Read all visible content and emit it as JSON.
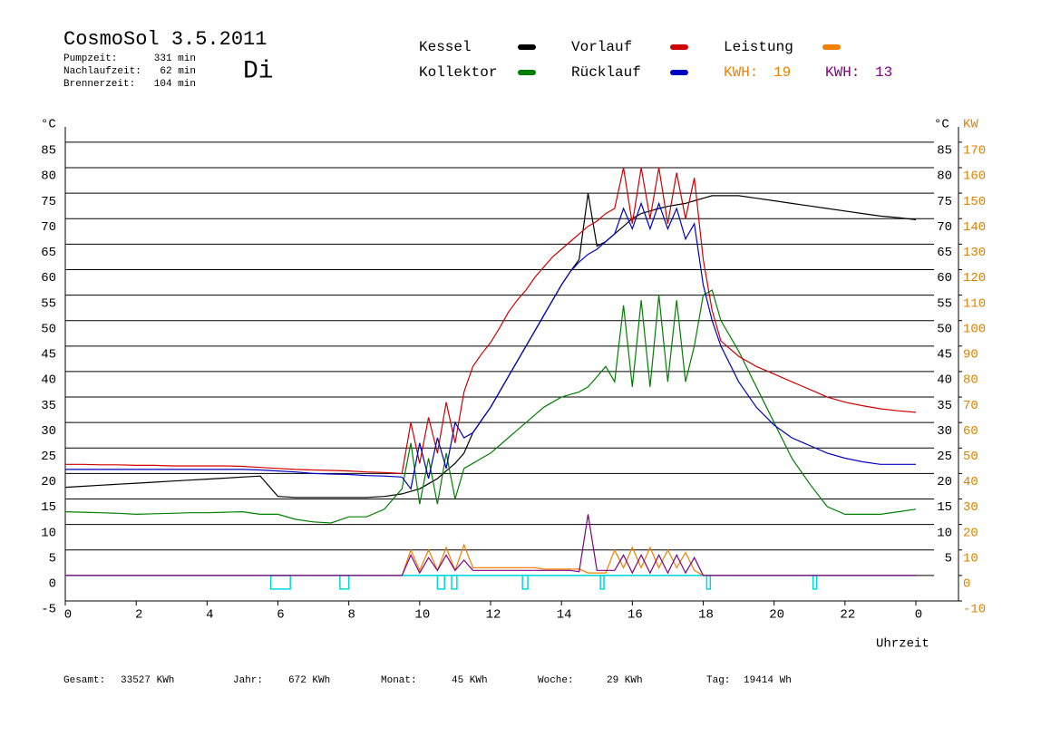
{
  "chart_data": {
    "type": "line",
    "title": "CosmoSol 3.5.2011",
    "subtitle": "Di",
    "stats": [
      {
        "label": "Pumpzeit:",
        "value": "331 min"
      },
      {
        "label": "Nachlaufzeit:",
        "value": "62 min"
      },
      {
        "label": "Brennerzeit:",
        "value": "104 min"
      }
    ],
    "totals": [
      {
        "label": "Gesamt:",
        "value": "33527 KWh"
      },
      {
        "label": "Jahr:",
        "value": "672 KWh"
      },
      {
        "label": "Monat:",
        "value": "45 KWh"
      },
      {
        "label": "Woche:",
        "value": "29 KWh"
      },
      {
        "label": "Tag:",
        "value": "19414 Wh"
      }
    ],
    "x_label": "Uhrzeit",
    "y_label": "°C",
    "right_y_label": "°C",
    "y2_label": "KW",
    "x": [
      0,
      0.5,
      1,
      1.5,
      2,
      2.5,
      3,
      3.5,
      4,
      4.5,
      5,
      5.5,
      6,
      6.5,
      7,
      7.5,
      8,
      8.5,
      9,
      9.5,
      9.75,
      10,
      10.25,
      10.5,
      10.75,
      11,
      11.25,
      11.5,
      11.75,
      12,
      12.25,
      12.5,
      12.75,
      13,
      13.25,
      13.5,
      13.75,
      14,
      14.25,
      14.5,
      14.75,
      15,
      15.25,
      15.5,
      15.75,
      16,
      16.25,
      16.5,
      16.75,
      17,
      17.25,
      17.5,
      17.75,
      18,
      18.25,
      18.5,
      19,
      19.5,
      20,
      20.5,
      21,
      21.5,
      22,
      22.5,
      23,
      23.5,
      24
    ],
    "xlim": [
      0,
      24
    ],
    "xticks": [
      0,
      2,
      4,
      6,
      8,
      10,
      12,
      14,
      16,
      18,
      20,
      22,
      {
        "value": 24,
        "label": "0"
      }
    ],
    "ylim": [
      -5,
      88
    ],
    "yticks": [
      -5,
      0,
      5,
      10,
      15,
      20,
      25,
      30,
      35,
      40,
      45,
      50,
      55,
      60,
      65,
      70,
      75,
      80,
      85
    ],
    "y2lim": [
      -10,
      176
    ],
    "y2ticks": [
      -10,
      0,
      10,
      20,
      30,
      40,
      50,
      60,
      70,
      80,
      90,
      100,
      110,
      120,
      130,
      140,
      150,
      160,
      170
    ],
    "grid": true,
    "series": [
      {
        "name": "Kessel",
        "color": "#000000",
        "values": [
          17.3,
          17.5,
          17.7,
          17.9,
          18.1,
          18.3,
          18.5,
          18.7,
          18.9,
          19.1,
          19.3,
          19.5,
          15.5,
          15.3,
          15.3,
          15.3,
          15.3,
          15.3,
          15.5,
          16,
          16.5,
          17,
          18,
          19,
          20.5,
          22,
          24,
          28,
          30.5,
          33,
          36,
          39,
          42,
          45,
          48,
          51,
          54,
          57,
          59.6,
          62,
          75,
          64.6,
          65.5,
          67,
          68.5,
          70,
          71,
          71.5,
          72,
          72.4,
          72.7,
          73,
          73.5,
          74,
          74.5,
          74.5,
          74.5,
          74,
          73.5,
          73,
          72.5,
          72,
          71.5,
          71,
          70.5,
          70.2,
          69.8
        ]
      },
      {
        "name": "Kollektor",
        "color": "#008000",
        "values": [
          12.5,
          12.4,
          12.3,
          12.2,
          12,
          12.1,
          12.2,
          12.3,
          12.3,
          12.4,
          12.5,
          12,
          12,
          11,
          10.5,
          10.3,
          11.5,
          11.5,
          13,
          17,
          26,
          14,
          23,
          14,
          24,
          15,
          21,
          22,
          23,
          24,
          25.5,
          27,
          28.5,
          30,
          31.5,
          33,
          34,
          35,
          35.5,
          36,
          37,
          39,
          41,
          38,
          53,
          37,
          54,
          37,
          55,
          38,
          54,
          38,
          45,
          55,
          56,
          50,
          44,
          37,
          30,
          23,
          18,
          13.5,
          12,
          12,
          12,
          12.5,
          13
        ]
      },
      {
        "name": "Vorlauf",
        "color": "#d00000",
        "values": [
          21.8,
          21.8,
          21.7,
          21.7,
          21.6,
          21.6,
          21.5,
          21.5,
          21.5,
          21.5,
          21.4,
          21.2,
          21,
          20.8,
          20.7,
          20.6,
          20.5,
          20.3,
          20.2,
          20,
          30,
          22,
          31,
          24,
          34,
          26,
          36,
          41,
          43.5,
          45.7,
          48.5,
          51.6,
          54,
          56,
          58.5,
          60.5,
          62.5,
          64,
          65.5,
          67,
          68.5,
          69.5,
          71,
          72,
          80,
          69,
          80,
          70,
          80,
          69,
          79,
          70,
          78,
          62,
          52,
          46,
          43,
          41,
          39.5,
          38,
          36.5,
          35,
          34,
          33.3,
          32.7,
          32.3,
          32
        ]
      },
      {
        "name": "Rücklauf",
        "color": "#0000c0",
        "values": [
          20.8,
          20.8,
          20.8,
          20.8,
          20.8,
          20.8,
          20.8,
          20.8,
          20.8,
          20.8,
          20.8,
          20.7,
          20.5,
          20.3,
          20,
          19.9,
          19.8,
          19.6,
          19.5,
          19.3,
          17,
          26,
          19,
          27,
          21,
          30,
          27,
          28,
          30.5,
          33,
          36,
          39,
          42,
          45,
          48,
          51,
          54,
          57,
          59.6,
          61.5,
          63,
          64,
          65.5,
          67,
          72,
          68,
          73,
          68,
          73,
          68,
          72,
          66,
          69,
          57,
          50,
          45,
          38,
          33,
          29.5,
          27,
          25.5,
          24,
          23,
          22.3,
          21.8,
          21.8,
          21.8
        ]
      },
      {
        "name": "Leistung",
        "color": "#f08000",
        "axis": "y2",
        "values": [
          0,
          0,
          0,
          0,
          0,
          0,
          0,
          0,
          0,
          0,
          0,
          0,
          0,
          0,
          0,
          0,
          0,
          0,
          0,
          0,
          10,
          2,
          10,
          2,
          11,
          2,
          12,
          3,
          3,
          3,
          3,
          3,
          3,
          3,
          3,
          2.5,
          2.5,
          2.5,
          2.5,
          2.5,
          1,
          1,
          1,
          10,
          3,
          11,
          3,
          11,
          3,
          10,
          3,
          9,
          2,
          0,
          0,
          0,
          0,
          0,
          0,
          0,
          0,
          0,
          0,
          0,
          0,
          0,
          0
        ]
      },
      {
        "color": "#800080",
        "axis": "y2",
        "values": [
          0,
          0,
          0,
          0,
          0,
          0,
          0,
          0,
          0,
          0,
          0,
          0,
          0,
          0,
          0,
          0,
          0,
          0,
          0,
          0,
          8,
          1,
          7,
          2,
          8,
          2,
          6,
          2,
          2,
          2,
          2,
          2,
          2,
          2,
          2,
          2,
          2,
          2,
          2,
          1.5,
          24,
          2,
          2,
          2,
          8,
          1,
          8,
          1,
          8,
          1,
          8,
          1,
          7,
          0,
          0,
          0,
          0,
          0,
          0,
          0,
          0,
          0,
          0,
          0,
          0,
          0,
          0
        ]
      }
    ],
    "kwh": [
      {
        "label": "KWH:",
        "value": 19,
        "color": "#f08000"
      },
      {
        "label": "KWH:",
        "value": 13,
        "color": "#800080"
      }
    ],
    "pump_color": "#00d8e0",
    "pump": [
      [
        5.8,
        6.35
      ],
      [
        7.75,
        8.0
      ],
      [
        10.5,
        10.7
      ],
      [
        10.9,
        11.05
      ],
      [
        12.9,
        13.05
      ],
      [
        15.1,
        15.2
      ],
      [
        18.1,
        18.2
      ],
      [
        21.1,
        21.2
      ]
    ]
  }
}
